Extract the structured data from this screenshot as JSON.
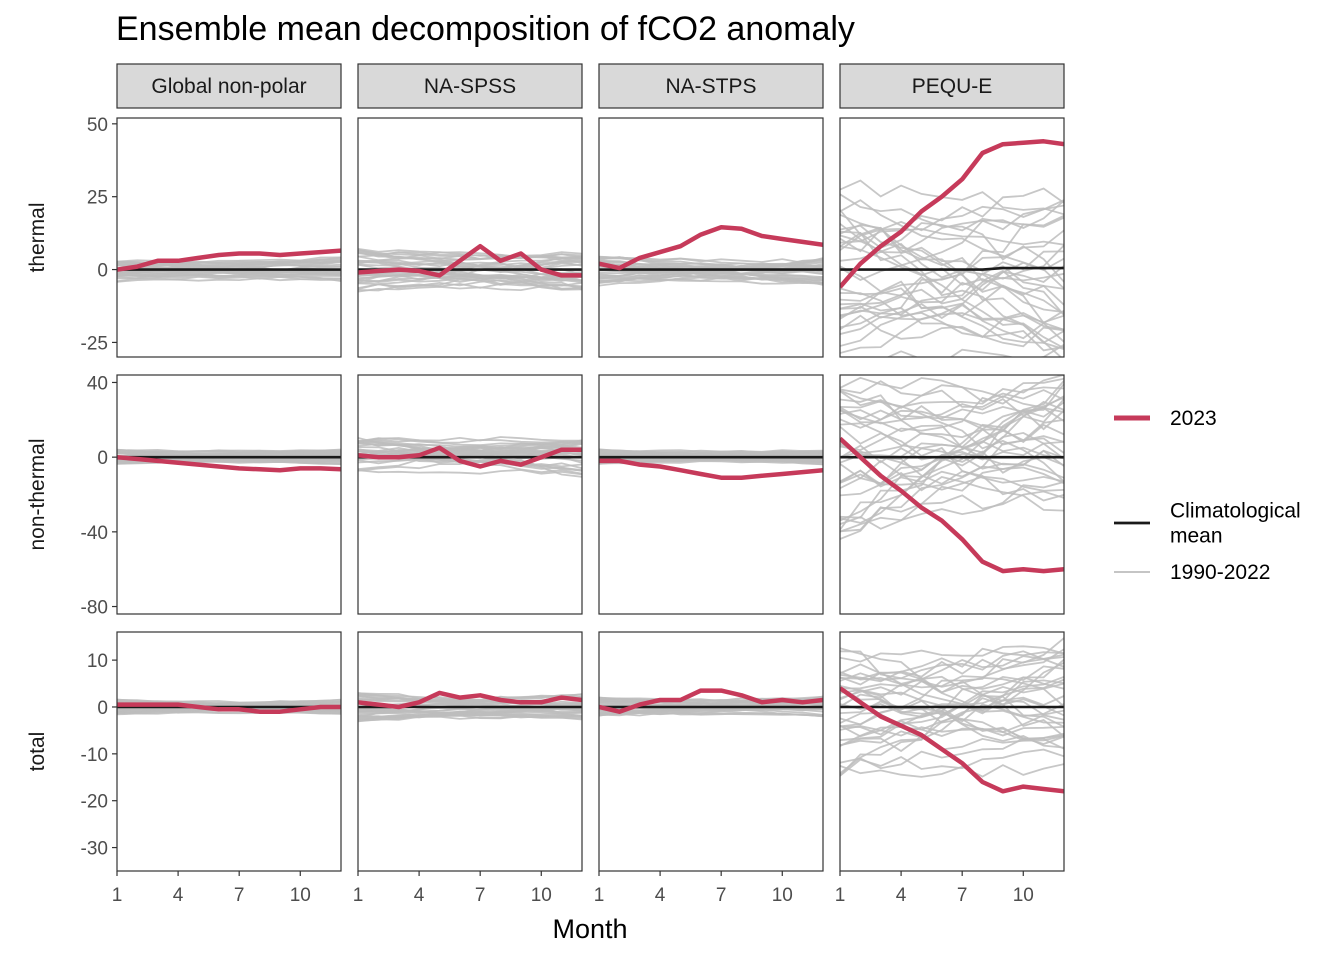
{
  "title": "Ensemble mean decomposition of fCO2 anomaly",
  "xlabel": "Month",
  "colors": {
    "year_2023": "#c63a5a",
    "climatological_mean": "#1a1a1a",
    "historical": "#bdbdbd",
    "strip_fill": "#d9d9d9",
    "panel_border": "#333333"
  },
  "legend": {
    "position": "right",
    "entries": [
      {
        "label_lines": [
          "2023"
        ],
        "color": "#c63a5a",
        "weight": "thick"
      },
      {
        "label_lines": [
          "Climatological",
          "mean"
        ],
        "color": "#1a1a1a",
        "weight": "medium"
      },
      {
        "label_lines": [
          "1990-2022"
        ],
        "color": "#bdbdbd",
        "weight": "thin"
      }
    ]
  },
  "chart_data": {
    "type": "line",
    "facets": {
      "columns": [
        "Global non-polar",
        "NA-SPSS",
        "NA-STPS",
        "PEQU-E"
      ],
      "rows": [
        "thermal",
        "non-thermal",
        "total"
      ]
    },
    "x": [
      1,
      2,
      3,
      4,
      5,
      6,
      7,
      8,
      9,
      10,
      11,
      12
    ],
    "x_ticks": [
      "1",
      "4",
      "7",
      "10"
    ],
    "x_tick_values": [
      1,
      4,
      7,
      10
    ],
    "row_axes": [
      {
        "row": "thermal",
        "ylim": [
          -30,
          52
        ],
        "ticks": [
          50,
          25,
          0,
          -25
        ]
      },
      {
        "row": "non-thermal",
        "ylim": [
          -84,
          44
        ],
        "ticks": [
          40,
          0,
          -40,
          -80
        ]
      },
      {
        "row": "total",
        "ylim": [
          -35,
          16
        ],
        "ticks": [
          10,
          0,
          -10,
          -20,
          -30
        ]
      }
    ],
    "series_2023": {
      "thermal": [
        [
          0,
          1,
          3,
          3,
          4,
          5,
          5.5,
          5.5,
          5,
          5.5,
          6,
          6.5
        ],
        [
          -1,
          -0.5,
          0,
          -0.5,
          -2,
          3,
          8,
          3,
          5.5,
          0,
          -2,
          -2
        ],
        [
          2,
          0.5,
          4,
          6,
          8,
          12,
          14.5,
          14,
          11.5,
          10.5,
          9.5,
          8.5
        ],
        [
          -6,
          2,
          8,
          13,
          20,
          25,
          31,
          40,
          43,
          43.5,
          44,
          43
        ]
      ],
      "non_thermal": [
        [
          0,
          -1,
          -2,
          -3,
          -4,
          -5,
          -6,
          -6.5,
          -7,
          -6,
          -6,
          -6.5
        ],
        [
          1,
          0,
          0,
          1,
          5,
          -2,
          -5,
          -2,
          -4,
          0,
          4,
          4
        ],
        [
          -2,
          -2,
          -4,
          -5,
          -7,
          -9,
          -11,
          -11,
          -10,
          -9,
          -8,
          -7
        ],
        [
          10,
          0,
          -10,
          -18,
          -27,
          -34,
          -44,
          -56,
          -61,
          -60,
          -61,
          -60
        ]
      ],
      "total": [
        [
          0.5,
          0.5,
          0.5,
          0.5,
          0,
          -0.5,
          -0.5,
          -1,
          -1,
          -0.5,
          0,
          0
        ],
        [
          1,
          0.5,
          0,
          1,
          3,
          2,
          2.5,
          1.5,
          1,
          1,
          2,
          1.5
        ],
        [
          0,
          -1,
          0.5,
          1.5,
          1.5,
          3.5,
          3.5,
          2.5,
          1,
          1.5,
          1,
          1.5
        ],
        [
          4,
          1,
          -2,
          -4,
          -6,
          -9,
          -12,
          -16,
          -18,
          -17,
          -17.5,
          -18
        ]
      ]
    },
    "climatological_mean": {
      "thermal": [
        [
          0,
          0,
          0,
          0,
          0,
          0,
          0,
          0,
          0,
          0,
          0,
          0
        ],
        [
          0,
          0,
          0,
          0,
          0,
          0,
          0,
          0,
          0,
          0,
          0,
          0
        ],
        [
          0,
          0,
          0,
          0,
          0,
          0,
          0,
          0,
          0,
          0,
          0,
          0
        ],
        [
          0,
          0,
          0,
          0,
          0,
          0,
          0,
          0,
          0.5,
          0.5,
          0.5,
          0.5
        ]
      ],
      "non_thermal": [
        [
          0,
          0,
          0,
          0,
          0,
          0,
          0,
          0,
          0,
          0,
          0,
          0
        ],
        [
          0,
          0,
          0,
          0,
          0,
          0,
          0,
          0,
          0,
          0,
          0,
          0
        ],
        [
          0,
          0,
          0,
          0,
          0,
          0,
          0,
          0,
          0,
          0,
          0,
          0
        ],
        [
          0,
          0,
          0,
          0,
          0,
          0,
          0,
          0,
          0,
          0,
          0,
          0
        ]
      ],
      "total": [
        [
          0,
          0,
          0,
          0,
          0,
          0,
          0,
          0,
          0,
          0,
          0,
          0
        ],
        [
          0,
          0,
          0,
          0,
          0,
          0,
          0,
          0,
          0,
          0,
          0,
          0
        ],
        [
          0,
          0,
          0,
          0,
          0,
          0,
          0,
          0,
          0,
          0,
          0,
          0
        ],
        [
          0,
          0,
          0,
          0,
          0,
          0,
          0,
          0,
          0,
          0,
          0,
          0
        ]
      ]
    },
    "historical_range": {
      "label": "1990-2022",
      "n_years": 33,
      "approx_spread": {
        "thermal": [
          4,
          7,
          5,
          30
        ],
        "non_thermal": [
          4,
          10,
          4,
          45
        ],
        "total": [
          1.5,
          3,
          2,
          14
        ]
      }
    }
  }
}
